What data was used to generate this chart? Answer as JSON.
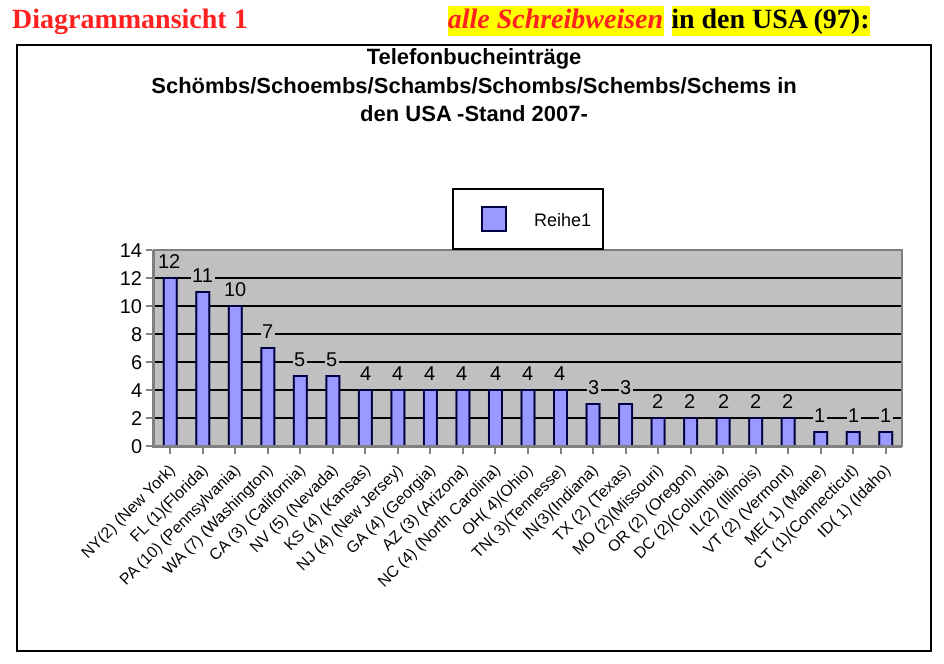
{
  "chart_data": {
    "type": "bar",
    "title": "Telefonbucheinträge Schömbs/Schoembs/Schambs/Schombs/Schembs/Schems in den USA -Stand 2007-",
    "annotations": [
      "Diagrammansicht 1",
      "alle Schreibweisen",
      "in den USA (97):"
    ],
    "categories": [
      "NY(2) (New York)",
      "FL (1)(Florida)",
      "PA (10) (Pennsylvania)",
      "WA (7) (Washington)",
      "CA (3) (California)",
      "NV (5) (Nevada)",
      "KS (4) (Kansas)",
      "NJ (4) (New Jersey)",
      "GA (4) (Georgia)",
      "AZ (3) (Arizona)",
      "NC (4) (North Carolina)",
      "OH( 4)(Ohio)",
      "TN( 3)(Tennesse)",
      "IN(3)(Indiana)",
      "TX (2) (Texas)",
      "MO (2)(Missouri)",
      "OR (2) (Oregon)",
      "DC (2)(Columbia)",
      "IL(2) (Illinois)",
      "VT (2) (Vermont)",
      "ME( 1) (Maine)",
      "CT (1)(Connecticut)",
      "ID( 1) (Idaho)"
    ],
    "series": [
      {
        "name": "Reihe1",
        "color": "#9999ff",
        "values": [
          12,
          11,
          10,
          7,
          5,
          5,
          4,
          4,
          4,
          4,
          4,
          4,
          4,
          3,
          3,
          2,
          2,
          2,
          2,
          2,
          1,
          1,
          1
        ]
      }
    ],
    "ylim": [
      0,
      14
    ],
    "yticks": [
      0,
      2,
      4,
      6,
      8,
      10,
      12,
      14
    ],
    "grid": "y",
    "legend": "top",
    "data_labels": true
  }
}
